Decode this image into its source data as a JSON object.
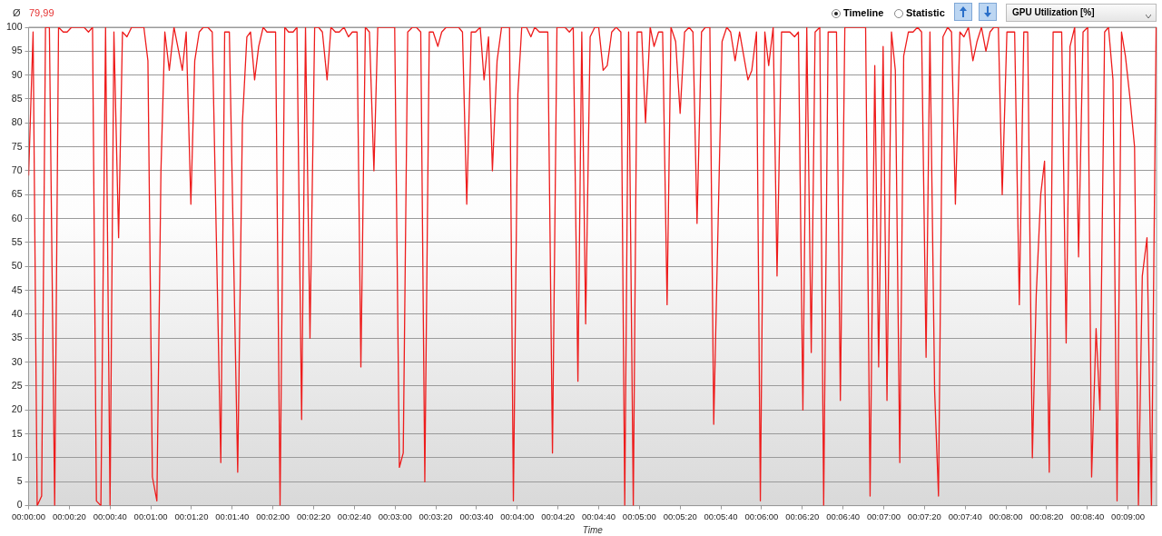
{
  "chart_data": {
    "type": "line",
    "xlabel": "Time",
    "ylabel": "GPU Utilization [%]",
    "annotations": [
      "Ø",
      "79,99",
      "Timeline",
      "Statistic"
    ],
    "color": "#ee1c1c",
    "grid": "y",
    "legend": false,
    "marker": "none",
    "line_style": "solid",
    "xlim": [
      0,
      554
    ],
    "ylim": [
      0,
      100
    ],
    "yticks": [
      0,
      5,
      10,
      15,
      20,
      25,
      30,
      35,
      40,
      45,
      50,
      55,
      60,
      65,
      70,
      75,
      80,
      85,
      90,
      95,
      100
    ],
    "xticks": [
      {
        "value": 0,
        "label": "00:00:00"
      },
      {
        "value": 20,
        "label": "00:00:20"
      },
      {
        "value": 40,
        "label": "00:00:40"
      },
      {
        "value": 60,
        "label": "00:01:00"
      },
      {
        "value": 80,
        "label": "00:01:20"
      },
      {
        "value": 100,
        "label": "00:01:40"
      },
      {
        "value": 120,
        "label": "00:02:00"
      },
      {
        "value": 140,
        "label": "00:02:20"
      },
      {
        "value": 160,
        "label": "00:02:40"
      },
      {
        "value": 180,
        "label": "00:03:00"
      },
      {
        "value": 200,
        "label": "00:03:20"
      },
      {
        "value": 220,
        "label": "00:03:40"
      },
      {
        "value": 240,
        "label": "00:04:00"
      },
      {
        "value": 260,
        "label": "00:04:20"
      },
      {
        "value": 280,
        "label": "00:04:40"
      },
      {
        "value": 300,
        "label": "00:05:00"
      },
      {
        "value": 320,
        "label": "00:05:20"
      },
      {
        "value": 340,
        "label": "00:05:40"
      },
      {
        "value": 360,
        "label": "00:06:00"
      },
      {
        "value": 380,
        "label": "00:06:20"
      },
      {
        "value": 400,
        "label": "00:06:40"
      },
      {
        "value": 420,
        "label": "00:07:00"
      },
      {
        "value": 440,
        "label": "00:07:20"
      },
      {
        "value": 460,
        "label": "00:07:40"
      },
      {
        "value": 480,
        "label": "00:08:00"
      },
      {
        "value": 500,
        "label": "00:08:20"
      },
      {
        "value": 520,
        "label": "00:08:40"
      },
      {
        "value": 540,
        "label": "00:09:00"
      }
    ],
    "x": [
      0,
      2.2,
      4.2,
      6.4,
      8.3,
      10.2,
      12.8,
      14.7,
      17,
      18.9,
      21.1,
      27.2,
      29.4,
      31.4,
      33.3,
      35.5,
      37.8,
      40,
      41.9,
      44.2,
      46.1,
      48.3,
      50.6,
      56.6,
      58.6,
      60.8,
      63,
      65,
      66.9,
      69.1,
      71.4,
      75.5,
      77.4,
      79.7,
      81.6,
      83.8,
      85.8,
      88,
      90.2,
      94.4,
      96.3,
      98.6,
      102.7,
      105,
      107.2,
      109,
      111,
      113,
      115.2,
      117.1,
      121.3,
      123.5,
      125.8,
      127.7,
      129.9,
      131.8,
      134.1,
      136,
      138.2,
      140.5,
      142.4,
      144.3,
      146.6,
      148.5,
      150.7,
      152.6,
      154.9,
      157.1,
      159,
      161.3,
      163.2,
      165.4,
      167.4,
      169.6,
      171.5,
      179.8,
      182.1,
      184,
      186.2,
      188.5,
      190.4,
      192.6,
      194.6,
      196.8,
      198.7,
      201,
      202.9,
      205.1,
      211.2,
      213.1,
      215.2,
      217.4,
      219.5,
      221.8,
      223.7,
      225.9,
      227.8,
      230.1,
      232.3,
      236.2,
      238.1,
      240.3,
      242.2,
      244.5,
      246.7,
      248.6,
      250.9,
      255,
      257.3,
      259.5,
      263.4,
      265.6,
      267.5,
      269.8,
      271.7,
      273.6,
      275.8,
      278.1,
      280,
      282.2,
      284.2,
      286.4,
      288.6,
      290.9,
      292.8,
      294.7,
      297,
      298.9,
      301.1,
      303,
      305.3,
      307.2,
      309.4,
      311.4,
      313.6,
      315.5,
      317.8,
      320,
      322.2,
      324.4,
      326.3,
      328.3,
      330.5,
      332.4,
      334.6,
      336.5,
      340.6,
      342.9,
      344.8,
      347,
      349.2,
      353.3,
      355.2,
      357.5,
      359.4,
      361.6,
      363.5,
      365.7,
      367.6,
      369.8,
      373.9,
      376.2,
      378.1,
      380.3,
      382.2,
      384.4,
      386.3,
      388.6,
      390.5,
      392.7,
      396.8,
      398.7,
      400.9,
      411.1,
      413.3,
      415.6,
      417.5,
      419.7,
      421.6,
      423.8,
      425.7,
      427.9,
      429.8,
      432.1,
      434.4,
      436.6,
      438.6,
      440.8,
      442.7,
      445,
      446.9,
      449.1,
      451.4,
      453.3,
      455.2,
      457.4,
      459.4,
      461.6,
      463.8,
      465.8,
      468,
      470.2,
      472.2,
      474.1,
      476.3,
      478.2,
      480.5,
      484.3,
      486.6,
      488.8,
      490.7,
      493,
      494.9,
      497.1,
      499,
      501.3,
      503.2,
      507.4,
      509.6,
      511.5,
      513.8,
      515.7,
      517.9,
      520.2,
      522.1,
      524.3,
      526.2,
      528.5,
      530.4,
      532.6,
      534.6,
      536.8,
      538.7,
      541,
      543.2,
      545.1,
      547,
      549.3,
      551.5,
      553.8
    ],
    "values": [
      69,
      99,
      0,
      2,
      100,
      100,
      0,
      100,
      99,
      99,
      100,
      100,
      99,
      100,
      1,
      0,
      100,
      0,
      99,
      56,
      99,
      98,
      100,
      100,
      93,
      6,
      1,
      70,
      99,
      91,
      100,
      91,
      99,
      63,
      93,
      99,
      100,
      100,
      99,
      9,
      99,
      99,
      7,
      80,
      98,
      99,
      89,
      96,
      100,
      99,
      99,
      0,
      100,
      99,
      99,
      100,
      18,
      100,
      35,
      100,
      100,
      99,
      89,
      100,
      99,
      99,
      100,
      98,
      99,
      99,
      29,
      100,
      99,
      70,
      100,
      100,
      8,
      11,
      99,
      100,
      100,
      99,
      5,
      99,
      99,
      96,
      99,
      100,
      100,
      99,
      63,
      99,
      99,
      100,
      89,
      98,
      70,
      93,
      100,
      100,
      1,
      86,
      100,
      100,
      98,
      100,
      99,
      99,
      11,
      100,
      100,
      99,
      100,
      26,
      99,
      38,
      98,
      100,
      100,
      91,
      92,
      99,
      100,
      99,
      0,
      99,
      0,
      99,
      99,
      80,
      100,
      96,
      99,
      99,
      42,
      100,
      97,
      82,
      99,
      100,
      99,
      59,
      99,
      100,
      100,
      17,
      97,
      100,
      99,
      93,
      99,
      89,
      91,
      99,
      1,
      99,
      92,
      100,
      48,
      99,
      99,
      98,
      99,
      20,
      100,
      32,
      99,
      100,
      0,
      99,
      99,
      22,
      100,
      100,
      2,
      92,
      29,
      96,
      22,
      99,
      91,
      9,
      94,
      99,
      99,
      100,
      99,
      31,
      99,
      24,
      2,
      98,
      100,
      99,
      63,
      99,
      98,
      100,
      93,
      97,
      100,
      95,
      99,
      100,
      100,
      65,
      99,
      99,
      42,
      99,
      99,
      10,
      44,
      65,
      72,
      7,
      99,
      99,
      34,
      96,
      100,
      52,
      99,
      100,
      6,
      37,
      20,
      99,
      100,
      89,
      1,
      99,
      94,
      85,
      75,
      0,
      48,
      56,
      0,
      100
    ]
  }
}
